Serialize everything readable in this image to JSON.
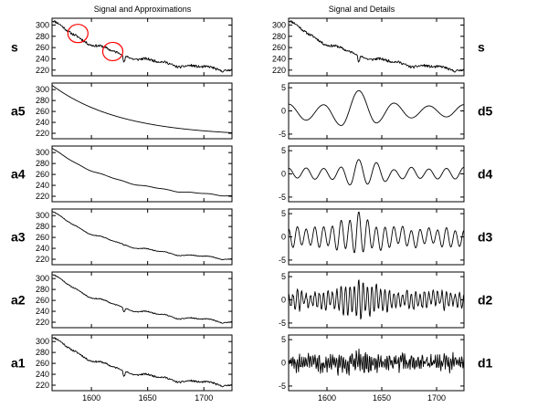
{
  "chart_data": {
    "type": "line",
    "left_title": "Signal and Approximations",
    "right_title": "Signal and Details",
    "xlim": [
      1565,
      1725
    ],
    "x_ticks": [
      1600,
      1650,
      1700
    ],
    "left_panels": [
      {
        "label": "s",
        "ylim": [
          210,
          312
        ],
        "y_ticks": [
          220,
          240,
          260,
          280,
          300
        ],
        "noise": 2.2,
        "bump": 1.0,
        "spike": -14
      },
      {
        "label": "a5",
        "ylim": [
          210,
          312
        ],
        "y_ticks": [
          220,
          240,
          260,
          280,
          300
        ],
        "noise": 0.0,
        "bump": 0.0,
        "spike": 0
      },
      {
        "label": "a4",
        "ylim": [
          210,
          312
        ],
        "y_ticks": [
          220,
          240,
          260,
          280,
          300
        ],
        "noise": 0.0,
        "bump": 0.4,
        "spike": 0
      },
      {
        "label": "a3",
        "ylim": [
          210,
          312
        ],
        "y_ticks": [
          220,
          240,
          260,
          280,
          300
        ],
        "noise": 0.6,
        "bump": 0.7,
        "spike": -2
      },
      {
        "label": "a2",
        "ylim": [
          210,
          312
        ],
        "y_ticks": [
          220,
          240,
          260,
          280,
          300
        ],
        "noise": 0.9,
        "bump": 0.9,
        "spike": -9
      },
      {
        "label": "a1",
        "ylim": [
          210,
          312
        ],
        "y_ticks": [
          220,
          240,
          260,
          280,
          300
        ],
        "noise": 1.6,
        "bump": 1.0,
        "spike": -12
      }
    ],
    "right_panels": [
      {
        "label": "s",
        "kind": "signal",
        "ylim": [
          210,
          312
        ],
        "y_ticks": [
          220,
          240,
          260,
          280,
          300
        ],
        "noise": 2.2,
        "bump": 1.0,
        "spike": -14
      },
      {
        "label": "d5",
        "kind": "detail",
        "ylim": [
          -6,
          6
        ],
        "y_ticks": [
          -5,
          0,
          5
        ],
        "amp": 4.5,
        "knots": 10,
        "noise": 0.0
      },
      {
        "label": "d4",
        "kind": "detail",
        "ylim": [
          -6,
          6
        ],
        "y_ticks": [
          -5,
          0,
          5
        ],
        "amp": 3.8,
        "knots": 20,
        "noise": 0.0
      },
      {
        "label": "d3",
        "kind": "detail",
        "ylim": [
          -6,
          6
        ],
        "y_ticks": [
          -5,
          0,
          5
        ],
        "amp": 5.5,
        "knots": 40,
        "noise": 0.0
      },
      {
        "label": "d2",
        "kind": "detail",
        "ylim": [
          -6,
          6
        ],
        "y_ticks": [
          -5,
          0,
          5
        ],
        "amp": 5.0,
        "knots": 80,
        "noise": 0.4
      },
      {
        "label": "d1",
        "kind": "detail",
        "ylim": [
          -6,
          6
        ],
        "y_ticks": [
          -5,
          0,
          5
        ],
        "amp": 3.0,
        "knots": 160,
        "noise": 1.0
      }
    ],
    "highlight_circles": [
      {
        "x": 1588,
        "y": 285
      },
      {
        "x": 1619,
        "y": 253
      }
    ],
    "circle_color": "#ff0000",
    "line_color": "#000000"
  }
}
